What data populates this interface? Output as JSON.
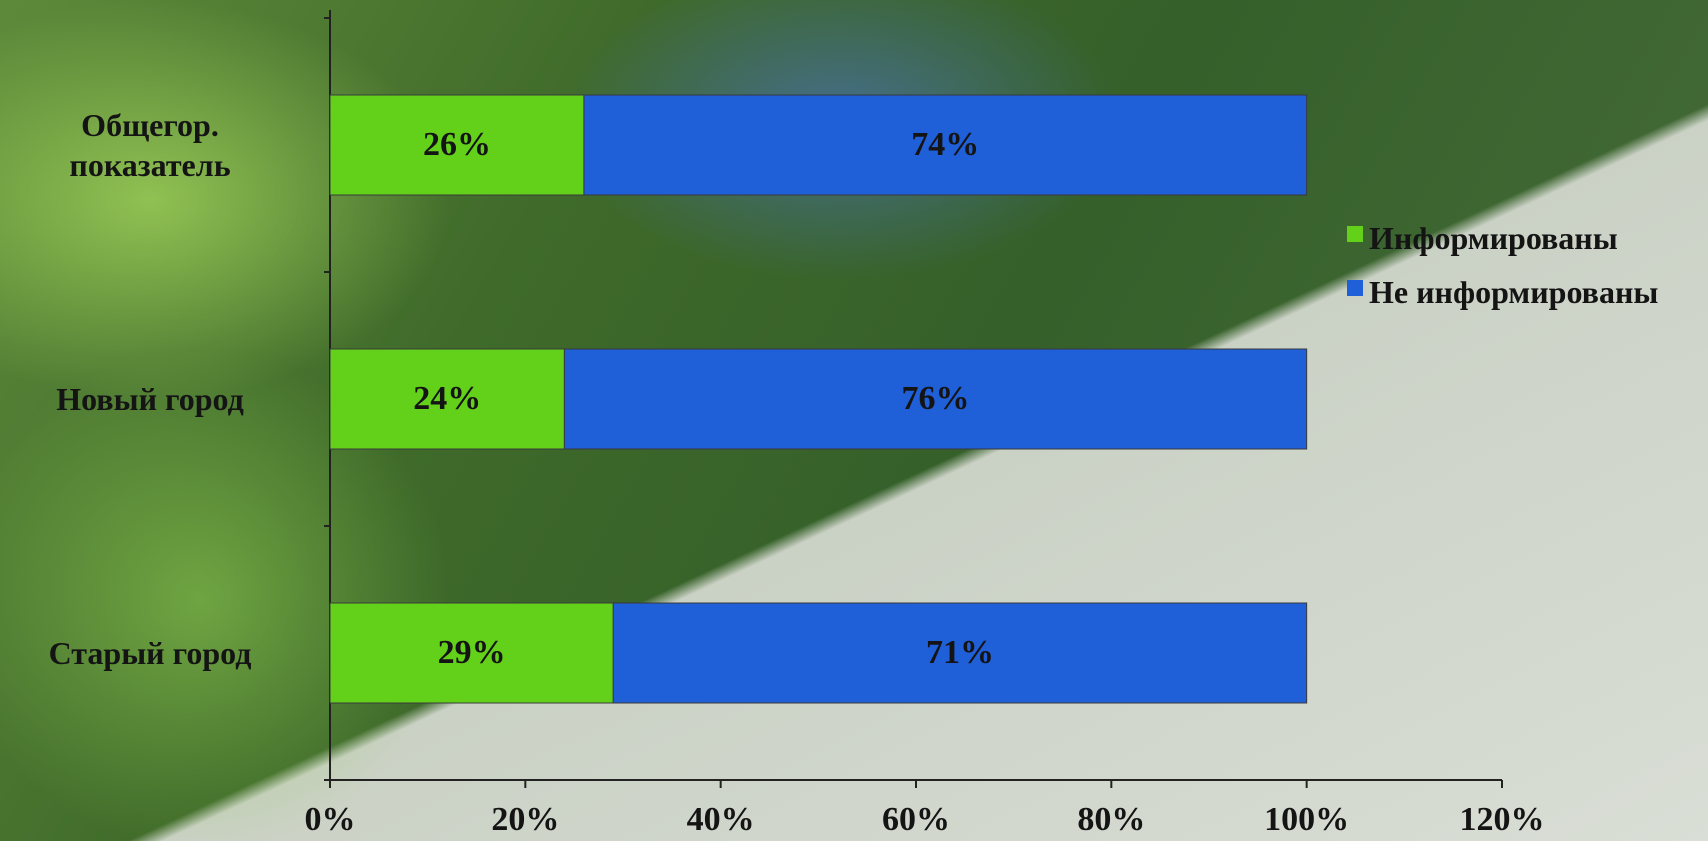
{
  "chart_data": {
    "type": "bar",
    "orientation": "horizontal",
    "stacked": true,
    "categories": [
      "Общегор. показатель",
      "Новый город",
      "Старый город"
    ],
    "series": [
      {
        "name": "Информированы",
        "color": "#63d11a",
        "values": [
          26,
          24,
          29
        ],
        "value_labels": [
          "26%",
          "24%",
          "29%"
        ]
      },
      {
        "name": "Не информированы",
        "color": "#1f5fd8",
        "values": [
          74,
          76,
          71
        ],
        "value_labels": [
          "74%",
          "76%",
          "71%"
        ]
      }
    ],
    "xlim": [
      0,
      120
    ],
    "xticks": [
      {
        "value": 0,
        "label": "0%"
      },
      {
        "value": 20,
        "label": "20%"
      },
      {
        "value": 40,
        "label": "40%"
      },
      {
        "value": 60,
        "label": "60%"
      },
      {
        "value": 80,
        "label": "80%"
      },
      {
        "value": 100,
        "label": "100%"
      },
      {
        "value": 120,
        "label": "120%"
      }
    ],
    "legend": "right"
  }
}
